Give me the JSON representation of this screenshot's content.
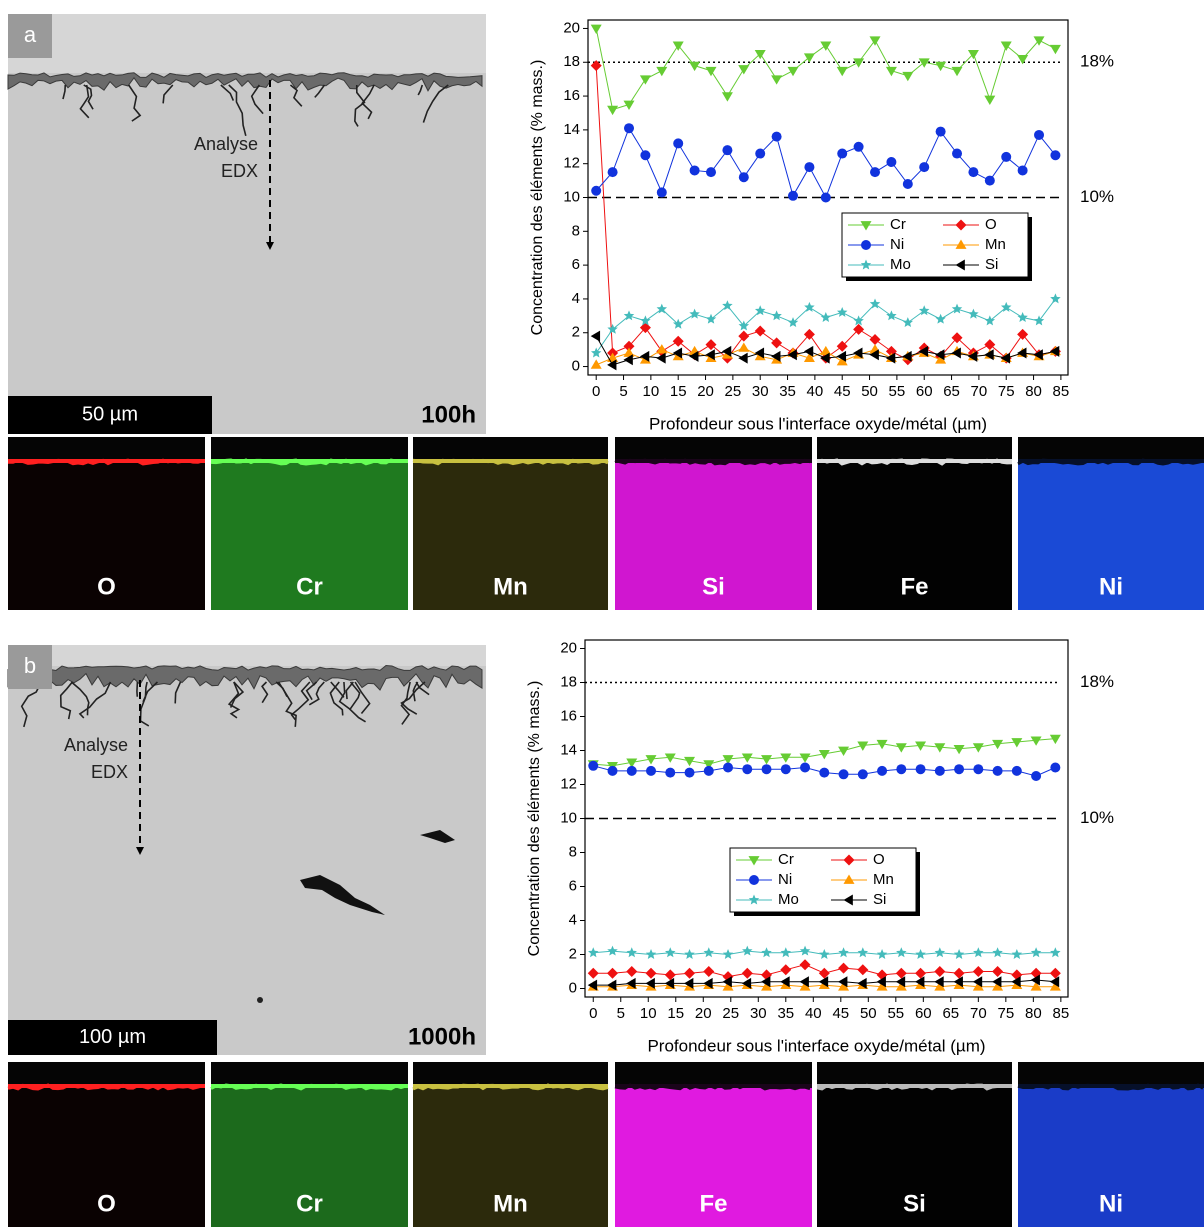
{
  "panels": [
    {
      "label": "a",
      "scale_bar": "50 µm",
      "duration": "100h",
      "annotation": [
        "Analyse",
        "EDX"
      ],
      "maps": [
        {
          "label": "O",
          "color": "#0a0202",
          "edge": "#ff2020"
        },
        {
          "label": "Cr",
          "color": "#1f7a1f",
          "edge": "#66ff55"
        },
        {
          "label": "Mn",
          "color": "#2c2a0c",
          "edge": "#c8c040"
        },
        {
          "label": "Si",
          "color": "#d016d0",
          "edge": "#1a041a"
        },
        {
          "label": "Fe",
          "color": "#020202",
          "edge": "#dddddd"
        },
        {
          "label": "Ni",
          "color": "#1a4ad6",
          "edge": "#06102a"
        }
      ]
    },
    {
      "label": "b",
      "scale_bar": "100 µm",
      "duration": "1000h",
      "annotation": [
        "Analyse",
        "EDX"
      ],
      "maps": [
        {
          "label": "O",
          "color": "#0a0202",
          "edge": "#ff2020"
        },
        {
          "label": "Cr",
          "color": "#1c6a1c",
          "edge": "#66ff55"
        },
        {
          "label": "Mn",
          "color": "#2c2a0c",
          "edge": "#c8c040"
        },
        {
          "label": "Fe",
          "color": "#e01ae0",
          "edge": "#1a041a"
        },
        {
          "label": "Si",
          "color": "#020202",
          "edge": "#bbbbbb"
        },
        {
          "label": "Ni",
          "color": "#1a3cc8",
          "edge": "#06102a"
        }
      ]
    }
  ],
  "chart_data": [
    {
      "type": "line",
      "y_label": "Concentration des éléments (% mass.)",
      "x_label": "Profondeur sous l'interface oxyde/métal (µm)",
      "x": [
        0,
        3,
        6,
        9,
        12,
        15,
        18,
        21,
        24,
        27,
        30,
        33,
        36,
        39,
        42,
        45,
        48,
        51,
        54,
        57,
        60,
        63,
        66,
        69,
        72,
        75,
        78,
        81,
        84
      ],
      "series": [
        {
          "name": "Cr",
          "color": "#66cc33",
          "marker": "triangle-down",
          "values": [
            20,
            15.2,
            15.5,
            17,
            17.5,
            19,
            17.8,
            17.5,
            16,
            17.6,
            18.5,
            17,
            17.5,
            18.3,
            19,
            17.5,
            18,
            19.3,
            17.5,
            17.2,
            18,
            17.8,
            17.5,
            18.5,
            15.8,
            19,
            18.2,
            19.3,
            18.8
          ]
        },
        {
          "name": "O",
          "color": "#ee1111",
          "marker": "diamond",
          "values": [
            17.8,
            0.8,
            1.2,
            2.3,
            0.9,
            1.5,
            0.7,
            1.3,
            0.5,
            1.8,
            2.1,
            1.4,
            0.8,
            1.9,
            0.5,
            1.2,
            2.2,
            1.6,
            0.9,
            0.4,
            1.1,
            0.6,
            1.7,
            0.8,
            1.3,
            0.5,
            1.9,
            0.7,
            0.9
          ]
        },
        {
          "name": "Ni",
          "color": "#1133dd",
          "marker": "circle",
          "values": [
            10.4,
            11.5,
            14.1,
            12.5,
            10.3,
            13.2,
            11.6,
            11.5,
            12.8,
            11.2,
            12.6,
            13.6,
            10.1,
            11.8,
            10,
            12.6,
            13,
            11.5,
            12.1,
            10.8,
            11.8,
            13.9,
            12.6,
            11.5,
            11,
            12.4,
            11.6,
            13.7,
            12.5
          ]
        },
        {
          "name": "Mn",
          "color": "#ff9900",
          "marker": "triangle-up",
          "values": [
            0.1,
            0.5,
            0.8,
            0.4,
            1.0,
            0.6,
            0.9,
            0.5,
            0.7,
            1.1,
            0.6,
            0.4,
            0.8,
            0.5,
            0.9,
            0.3,
            0.7,
            1.0,
            0.5,
            0.6,
            0.8,
            0.4,
            0.9,
            0.6,
            0.7,
            0.5,
            0.8,
            0.6,
            0.9
          ]
        },
        {
          "name": "Mo",
          "color": "#44bbbb",
          "marker": "star",
          "values": [
            0.8,
            2.2,
            3.0,
            2.7,
            3.4,
            2.5,
            3.1,
            2.8,
            3.6,
            2.4,
            3.3,
            3.0,
            2.6,
            3.5,
            2.9,
            3.2,
            2.7,
            3.7,
            3.0,
            2.6,
            3.3,
            2.8,
            3.4,
            3.1,
            2.7,
            3.5,
            2.9,
            2.7,
            4.0
          ]
        },
        {
          "name": "Si",
          "color": "#000000",
          "marker": "triangle-left",
          "values": [
            1.8,
            0.1,
            0.4,
            0.6,
            0.5,
            0.8,
            0.6,
            0.7,
            0.9,
            0.5,
            0.8,
            0.6,
            0.7,
            0.9,
            0.5,
            0.6,
            0.8,
            0.7,
            0.5,
            0.6,
            0.9,
            0.7,
            0.8,
            0.6,
            0.7,
            0.5,
            0.8,
            0.7,
            0.9
          ]
        }
      ],
      "xlim": [
        -1.5,
        86.3
      ],
      "ylim": [
        -0.5,
        20.5
      ],
      "xticks": [
        0,
        5,
        10,
        15,
        20,
        25,
        30,
        35,
        40,
        45,
        50,
        55,
        60,
        65,
        70,
        75,
        80,
        85
      ],
      "yticks": [
        0,
        2,
        4,
        6,
        8,
        10,
        12,
        14,
        16,
        18,
        20
      ],
      "reference_lines": [
        {
          "value": 18,
          "label": "18%",
          "style": "dotted"
        },
        {
          "value": 10,
          "label": "10%",
          "style": "dashed"
        }
      ],
      "legend": "center"
    },
    {
      "type": "line",
      "y_label": "Concentration des éléments (% mass.)",
      "x_label": "Profondeur sous l'interface oxyde/métal (µm)",
      "x": [
        0,
        3.5,
        7,
        10.5,
        14,
        17.5,
        21,
        24.5,
        28,
        31.5,
        35,
        38.5,
        42,
        45.5,
        49,
        52.5,
        56,
        59.5,
        63,
        66.5,
        70,
        73.5,
        77,
        80.5,
        84
      ],
      "series": [
        {
          "name": "Cr",
          "color": "#66cc33",
          "marker": "triangle-down",
          "values": [
            13.2,
            13.1,
            13.3,
            13.5,
            13.6,
            13.4,
            13.2,
            13.5,
            13.6,
            13.5,
            13.6,
            13.6,
            13.8,
            14.0,
            14.3,
            14.4,
            14.2,
            14.3,
            14.2,
            14.1,
            14.2,
            14.4,
            14.5,
            14.6,
            14.7
          ]
        },
        {
          "name": "O",
          "color": "#ee1111",
          "marker": "diamond",
          "values": [
            0.9,
            0.9,
            1.0,
            0.9,
            0.8,
            0.9,
            1.0,
            0.7,
            0.9,
            0.8,
            1.1,
            1.4,
            0.9,
            1.2,
            1.1,
            0.8,
            0.9,
            0.9,
            1.0,
            0.9,
            1.0,
            1.0,
            0.8,
            0.9,
            0.9
          ]
        },
        {
          "name": "Ni",
          "color": "#1133dd",
          "marker": "circle",
          "values": [
            13.1,
            12.8,
            12.8,
            12.8,
            12.7,
            12.7,
            12.8,
            13.0,
            12.9,
            12.9,
            12.9,
            13.0,
            12.7,
            12.6,
            12.6,
            12.8,
            12.9,
            12.9,
            12.8,
            12.9,
            12.9,
            12.8,
            12.8,
            12.5,
            13.0
          ]
        },
        {
          "name": "Mn",
          "color": "#ff9900",
          "marker": "triangle-up",
          "values": [
            0.1,
            0.1,
            0.2,
            0.1,
            0.2,
            0.1,
            0.2,
            0.1,
            0.2,
            0.1,
            0.2,
            0.1,
            0.2,
            0.1,
            0.2,
            0.1,
            0.1,
            0.2,
            0.1,
            0.2,
            0.1,
            0.1,
            0.2,
            0.1,
            0.1
          ]
        },
        {
          "name": "Mo",
          "color": "#44bbbb",
          "marker": "star",
          "values": [
            2.1,
            2.2,
            2.1,
            2.0,
            2.1,
            2.0,
            2.1,
            2.0,
            2.2,
            2.1,
            2.1,
            2.2,
            2.0,
            2.1,
            2.1,
            2.0,
            2.1,
            2.0,
            2.1,
            2.0,
            2.1,
            2.1,
            2.0,
            2.1,
            2.1
          ]
        },
        {
          "name": "Si",
          "color": "#000000",
          "marker": "triangle-left",
          "values": [
            0.2,
            0.2,
            0.3,
            0.3,
            0.3,
            0.3,
            0.3,
            0.4,
            0.3,
            0.4,
            0.4,
            0.4,
            0.4,
            0.4,
            0.3,
            0.4,
            0.4,
            0.4,
            0.4,
            0.4,
            0.4,
            0.4,
            0.4,
            0.5,
            0.4
          ]
        }
      ],
      "xlim": [
        -1.5,
        86.3
      ],
      "ylim": [
        -0.5,
        20.5
      ],
      "xticks": [
        0,
        5,
        10,
        15,
        20,
        25,
        30,
        35,
        40,
        45,
        50,
        55,
        60,
        65,
        70,
        75,
        80,
        85
      ],
      "yticks": [
        0,
        2,
        4,
        6,
        8,
        10,
        12,
        14,
        16,
        18,
        20
      ],
      "reference_lines": [
        {
          "value": 18,
          "label": "18%",
          "style": "dotted"
        },
        {
          "value": 10,
          "label": "10%",
          "style": "dashed"
        }
      ],
      "legend": "center"
    }
  ]
}
